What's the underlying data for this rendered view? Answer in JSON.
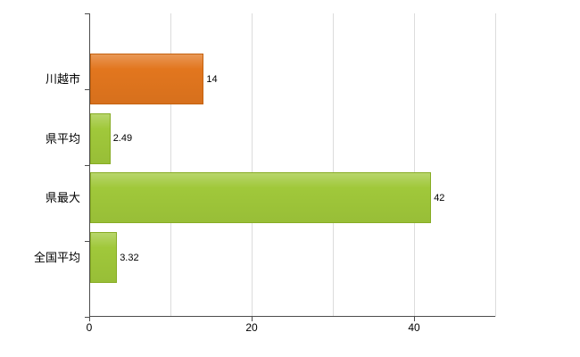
{
  "chart_data": {
    "type": "bar",
    "orientation": "horizontal",
    "title": "",
    "categories": [
      "川越市",
      "県平均",
      "県最大",
      "全国平均"
    ],
    "values": [
      14,
      2.49,
      42,
      3.32
    ],
    "value_labels": [
      "14",
      "2.49",
      "42",
      "3.32"
    ],
    "bar_colors": [
      "#e2761e",
      "#a0c83a",
      "#a0c83a",
      "#a0c83a"
    ],
    "bar_border_colors": [
      "#c4620f",
      "#87ac24",
      "#87ac24",
      "#87ac24"
    ],
    "xlim": [
      0,
      50
    ],
    "xticks": [
      0,
      20,
      40
    ],
    "xtick_labels": [
      "0",
      "20",
      "40"
    ],
    "gridlines": [
      10,
      20,
      30,
      40,
      50
    ],
    "grid": true,
    "legend": false,
    "axis_color": "#4d4d4d",
    "grid_color": "#dcdcdc",
    "background": "#ffffff"
  }
}
